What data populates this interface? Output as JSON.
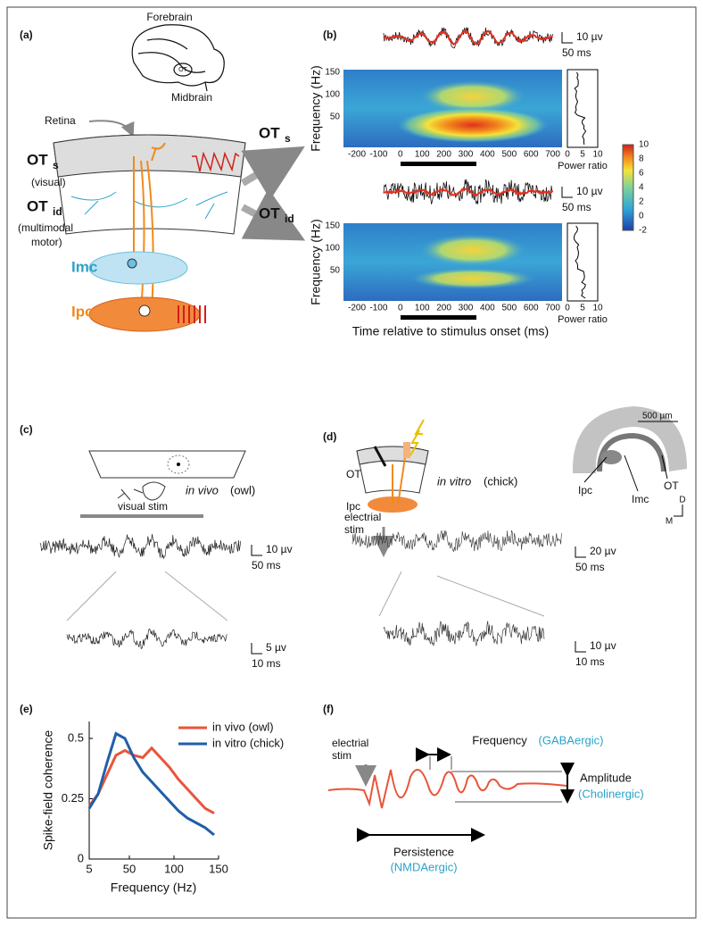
{
  "panels": {
    "a": {
      "label": "(a)",
      "forebrain": "Forebrain",
      "midbrain": "Midbrain",
      "ot_brain": "OT",
      "retina": "Retina",
      "ots": [
        "OT",
        "s"
      ],
      "visual": "(visual)",
      "otid": [
        "OT",
        "id"
      ],
      "multimodal": "(multimodal",
      "motor": "motor)",
      "imc": "Imc",
      "ipc": "Ipc",
      "arrow_ots": [
        "OT",
        "s"
      ],
      "arrow_otid": [
        "OT",
        "id"
      ]
    },
    "b": {
      "label": "(b)",
      "scale_top": [
        "10 µv",
        "50 ms"
      ],
      "scale_bottom": [
        "10 µv",
        "50 ms"
      ],
      "ylabel_top": "Frequency (Hz)",
      "ylabel_bottom": "Frequency (Hz)",
      "yticks": [
        "150",
        "100",
        "50"
      ],
      "xticks": [
        "-200",
        "-100",
        "0",
        "100",
        "200",
        "300",
        "400",
        "500",
        "600",
        "700"
      ],
      "power_ticks": [
        "0",
        "5",
        "10"
      ],
      "power_label": "Power ratio",
      "colorbar_ticks": [
        "10",
        "8",
        "6",
        "4",
        "2",
        "0",
        "-2"
      ],
      "xlabel": "Time relative to stimulus onset (ms)"
    },
    "c": {
      "label": "(c)",
      "in_vivo": "in vivo",
      "owl": "(owl)",
      "visual_stim": "visual stim",
      "scale1": [
        "10 µv",
        "50 ms"
      ],
      "scale2": [
        "5 µv",
        "10 ms"
      ]
    },
    "d": {
      "label": "(d)",
      "ot": "OT",
      "ipc": "Ipc",
      "in_vitro": "in vitro",
      "chick": "(chick)",
      "scale_bar": "500 µm",
      "slice_ipc": "Ipc",
      "slice_imc": "Imc",
      "slice_ot": "OT",
      "dir_d": "D",
      "dir_m": "M",
      "electrial": "electrial",
      "stim": "stim",
      "scale1": [
        "20 µv",
        "50 ms"
      ],
      "scale2": [
        "10 µv",
        "10 ms"
      ]
    },
    "f": {
      "label": "(f)",
      "electrial": "electrial",
      "stim": "stim",
      "frequency": "Frequency",
      "gaba": "(GABAergic)",
      "amplitude": "Amplitude",
      "cholinergic": "(Cholinergic)",
      "persistence": "Persistence",
      "nmda": "(NMDAergic)"
    }
  },
  "chart_data": {
    "type": "line",
    "label": "(e)",
    "ylabel": "Spike-field coherence",
    "xlabel": "Frequency (Hz)",
    "x": [
      5,
      15,
      25,
      35,
      45,
      55,
      65,
      75,
      85,
      95,
      105,
      115,
      125,
      135,
      145
    ],
    "series": [
      {
        "name": "in vivo (owl)",
        "color": "#e8553a",
        "values": [
          0.22,
          0.27,
          0.35,
          0.43,
          0.45,
          0.43,
          0.42,
          0.46,
          0.42,
          0.38,
          0.33,
          0.29,
          0.25,
          0.21,
          0.19
        ]
      },
      {
        "name": "in vitro (chick)",
        "color": "#1f5fa8",
        "values": [
          0.21,
          0.27,
          0.4,
          0.52,
          0.5,
          0.42,
          0.36,
          0.32,
          0.28,
          0.24,
          0.2,
          0.17,
          0.15,
          0.13,
          0.1
        ]
      }
    ],
    "xlim": [
      5,
      150
    ],
    "ylim": [
      0,
      0.57
    ],
    "xticks": [
      5,
      50,
      100,
      150
    ],
    "yticks": [
      0,
      0.25,
      0.5
    ]
  }
}
